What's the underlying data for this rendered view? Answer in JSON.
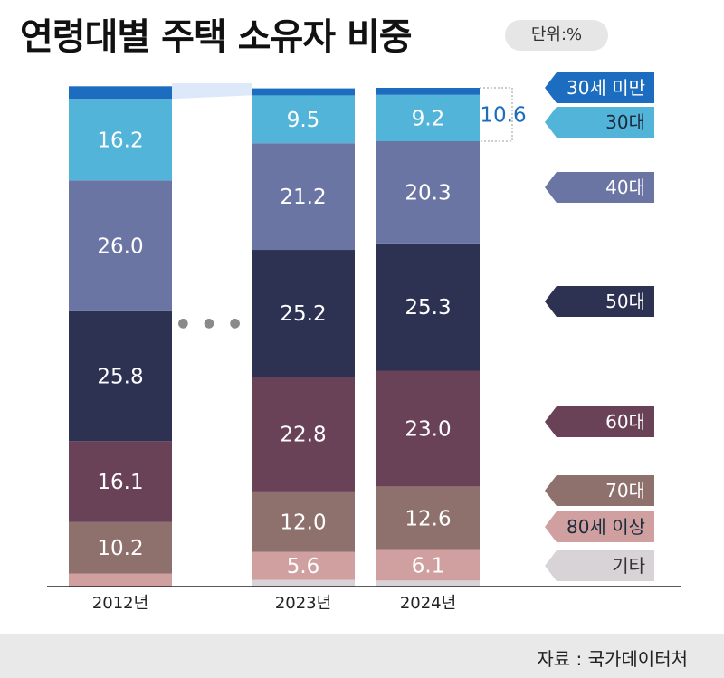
{
  "title": "연령대별 주택 소유자 비중",
  "unit": "단위:%",
  "source": "자료 : 국가데이터처",
  "colors": {
    "under30": "#1c6dbf",
    "30s": "#52b4d8",
    "40s": "#6b75a3",
    "50s": "#2d3152",
    "60s": "#6a4258",
    "70s": "#8e706d",
    "80plus": "#d0a0a0",
    "other": "#d8d3d6",
    "gap": "#dde9f8",
    "outside_label": "#1c6dbf",
    "axis": "#222222"
  },
  "chart_data": {
    "type": "bar",
    "stacked": true,
    "categories": [
      "2012년",
      "2023년",
      "2024년"
    ],
    "series": [
      {
        "name": "기타",
        "key": "other",
        "values": [
          0,
          1.3,
          1.2
        ]
      },
      {
        "name": "80세 이상",
        "key": "80plus",
        "values": [
          2.6,
          5.6,
          6.1
        ]
      },
      {
        "name": "70대",
        "key": "70s",
        "values": [
          10.2,
          12.0,
          12.6
        ]
      },
      {
        "name": "60대",
        "key": "60s",
        "values": [
          16.1,
          22.8,
          23.0
        ]
      },
      {
        "name": "50대",
        "key": "50s",
        "values": [
          25.8,
          25.2,
          25.3
        ]
      },
      {
        "name": "40대",
        "key": "40s",
        "values": [
          26.0,
          21.2,
          20.3
        ]
      },
      {
        "name": "30대",
        "key": "30s",
        "values": [
          16.2,
          9.5,
          9.2
        ]
      },
      {
        "name": "30세 미만",
        "key": "under30",
        "values": [
          2.5,
          1.4,
          1.4
        ]
      }
    ],
    "data_labels": [
      [
        "",
        "",
        "10.2",
        "16.1",
        "25.8",
        "26.0",
        "16.2",
        ""
      ],
      [
        "",
        "5.6",
        "12.0",
        "22.8",
        "25.2",
        "21.2",
        "9.5",
        ""
      ],
      [
        "",
        "6.1",
        "12.6",
        "23.0",
        "25.3",
        "20.3",
        "9.2",
        ""
      ]
    ],
    "callout": {
      "text": "10.6",
      "category": "2024년",
      "series": [
        "30대",
        "30세 미만"
      ]
    },
    "ellipsis": "● ● ●",
    "legend": "right"
  }
}
